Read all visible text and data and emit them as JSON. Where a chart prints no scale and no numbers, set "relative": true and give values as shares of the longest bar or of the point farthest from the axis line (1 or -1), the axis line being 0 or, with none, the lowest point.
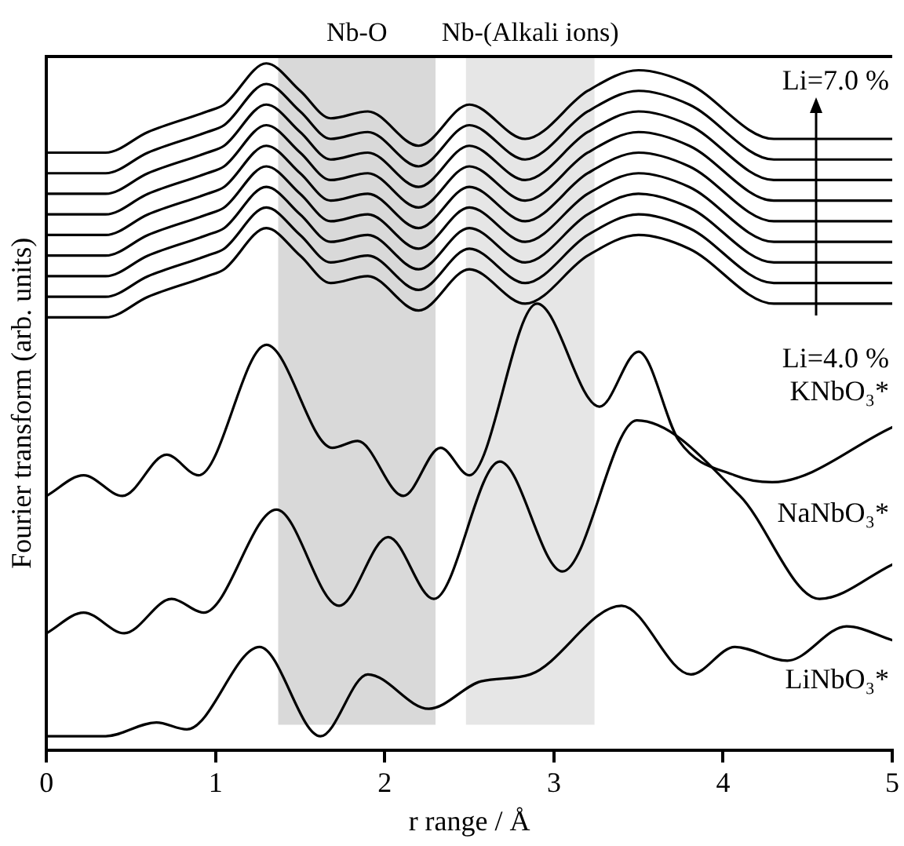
{
  "chart_data": {
    "type": "line",
    "relative": true,
    "xlabel": "r range / Å",
    "ylabel": "Fourier transform (arb. units)",
    "xlim": [
      0,
      5
    ],
    "xticks": [
      0,
      1,
      2,
      3,
      4,
      5
    ],
    "grid": false,
    "legend": false,
    "marker": "none",
    "line_style": "solid",
    "tick_labels": "x",
    "bands": [
      {
        "axis": "x",
        "from": 1.37,
        "to": 2.3,
        "label": "Nb-O",
        "color": "#d9d9d9"
      },
      {
        "axis": "x",
        "from": 2.48,
        "to": 3.24,
        "label": "Nb-(Alkali ions)",
        "color": "#e6e6e6"
      }
    ],
    "series": [
      {
        "name": "Li=7.0 %",
        "color": "#000000",
        "x": [
          0,
          0.35,
          0.6,
          0.95,
          1.05,
          1.3,
          1.5,
          1.68,
          1.9,
          2.2,
          2.5,
          2.83,
          3.2,
          3.5,
          3.8,
          4.3,
          4.6,
          5.0
        ],
        "values": [
          0.87,
          0.87,
          0.9,
          0.93,
          0.94,
          1.0,
          0.96,
          0.92,
          0.93,
          0.88,
          0.94,
          0.89,
          0.96,
          0.99,
          0.97,
          0.89,
          0.89,
          0.89
        ]
      },
      {
        "color": "#000000",
        "x": [
          0,
          0.35,
          0.6,
          0.95,
          1.05,
          1.3,
          1.5,
          1.68,
          1.9,
          2.2,
          2.5,
          2.83,
          3.2,
          3.5,
          3.8,
          4.3,
          4.6,
          5.0
        ],
        "values": [
          0.84,
          0.84,
          0.87,
          0.9,
          0.91,
          0.97,
          0.93,
          0.89,
          0.9,
          0.85,
          0.91,
          0.86,
          0.93,
          0.96,
          0.94,
          0.86,
          0.86,
          0.86
        ]
      },
      {
        "color": "#000000",
        "x": [
          0,
          0.35,
          0.6,
          0.95,
          1.05,
          1.3,
          1.5,
          1.68,
          1.9,
          2.2,
          2.5,
          2.83,
          3.2,
          3.5,
          3.8,
          4.3,
          4.6,
          5.0
        ],
        "values": [
          0.81,
          0.81,
          0.84,
          0.87,
          0.88,
          0.94,
          0.9,
          0.86,
          0.87,
          0.82,
          0.88,
          0.83,
          0.9,
          0.93,
          0.91,
          0.83,
          0.83,
          0.83
        ]
      },
      {
        "color": "#000000",
        "x": [
          0,
          0.35,
          0.6,
          0.95,
          1.05,
          1.3,
          1.5,
          1.68,
          1.9,
          2.2,
          2.5,
          2.83,
          3.2,
          3.5,
          3.8,
          4.3,
          4.6,
          5.0
        ],
        "values": [
          0.78,
          0.78,
          0.81,
          0.84,
          0.85,
          0.91,
          0.87,
          0.83,
          0.84,
          0.79,
          0.85,
          0.8,
          0.87,
          0.9,
          0.88,
          0.8,
          0.8,
          0.8
        ]
      },
      {
        "color": "#000000",
        "x": [
          0,
          0.35,
          0.6,
          0.95,
          1.05,
          1.3,
          1.5,
          1.68,
          1.9,
          2.2,
          2.5,
          2.83,
          3.2,
          3.5,
          3.8,
          4.3,
          4.6,
          5.0
        ],
        "values": [
          0.75,
          0.75,
          0.78,
          0.81,
          0.82,
          0.88,
          0.84,
          0.8,
          0.81,
          0.76,
          0.82,
          0.77,
          0.84,
          0.87,
          0.85,
          0.77,
          0.77,
          0.77
        ]
      },
      {
        "color": "#000000",
        "x": [
          0,
          0.35,
          0.6,
          0.95,
          1.05,
          1.3,
          1.5,
          1.68,
          1.9,
          2.2,
          2.5,
          2.83,
          3.2,
          3.5,
          3.8,
          4.3,
          4.6,
          5.0
        ],
        "values": [
          0.72,
          0.72,
          0.75,
          0.78,
          0.79,
          0.85,
          0.81,
          0.77,
          0.78,
          0.73,
          0.79,
          0.74,
          0.81,
          0.84,
          0.82,
          0.74,
          0.74,
          0.74
        ]
      },
      {
        "color": "#000000",
        "x": [
          0,
          0.35,
          0.6,
          0.95,
          1.05,
          1.3,
          1.5,
          1.68,
          1.9,
          2.2,
          2.5,
          2.83,
          3.2,
          3.5,
          3.8,
          4.3,
          4.6,
          5.0
        ],
        "values": [
          0.69,
          0.69,
          0.72,
          0.75,
          0.76,
          0.82,
          0.78,
          0.74,
          0.75,
          0.7,
          0.76,
          0.71,
          0.78,
          0.81,
          0.79,
          0.71,
          0.71,
          0.71
        ]
      },
      {
        "color": "#000000",
        "x": [
          0,
          0.35,
          0.6,
          0.95,
          1.05,
          1.3,
          1.5,
          1.68,
          1.9,
          2.2,
          2.5,
          2.83,
          3.2,
          3.5,
          3.8,
          4.3,
          4.6,
          5.0
        ],
        "values": [
          0.66,
          0.66,
          0.69,
          0.72,
          0.73,
          0.79,
          0.75,
          0.71,
          0.72,
          0.67,
          0.73,
          0.68,
          0.75,
          0.78,
          0.76,
          0.68,
          0.68,
          0.68
        ]
      },
      {
        "name": "Li=4.0 %",
        "color": "#000000",
        "x": [
          0,
          0.35,
          0.6,
          0.95,
          1.05,
          1.3,
          1.5,
          1.68,
          1.9,
          2.2,
          2.5,
          2.83,
          3.2,
          3.5,
          3.8,
          4.3,
          4.6,
          5.0
        ],
        "values": [
          0.63,
          0.63,
          0.66,
          0.69,
          0.7,
          0.76,
          0.72,
          0.68,
          0.69,
          0.64,
          0.7,
          0.65,
          0.72,
          0.75,
          0.73,
          0.65,
          0.65,
          0.65
        ]
      },
      {
        "name": "KNbO₃*",
        "color": "#000000",
        "x": [
          0,
          0.22,
          0.45,
          0.71,
          0.9,
          1.3,
          1.69,
          1.84,
          2.11,
          2.33,
          2.5,
          2.9,
          3.27,
          3.5,
          3.74,
          4.07,
          4.29,
          5.0
        ],
        "values": [
          0.37,
          0.4,
          0.37,
          0.43,
          0.4,
          0.59,
          0.44,
          0.45,
          0.37,
          0.44,
          0.4,
          0.65,
          0.5,
          0.58,
          0.45,
          0.4,
          0.39,
          0.47
        ]
      },
      {
        "name": "NaNbO₃*",
        "color": "#000000",
        "x": [
          0,
          0.22,
          0.46,
          0.74,
          0.93,
          1.36,
          1.73,
          2.02,
          2.29,
          2.68,
          3.05,
          3.49,
          4.1,
          4.57,
          5.0
        ],
        "values": [
          0.17,
          0.2,
          0.17,
          0.22,
          0.2,
          0.35,
          0.21,
          0.31,
          0.22,
          0.42,
          0.26,
          0.48,
          0.37,
          0.22,
          0.27
        ]
      },
      {
        "name": "LiNbO₃*",
        "color": "#000000",
        "x": [
          0,
          0.35,
          0.65,
          0.83,
          1.26,
          1.62,
          1.9,
          2.26,
          2.57,
          2.86,
          3.4,
          3.81,
          4.07,
          4.38,
          4.73,
          5.0
        ],
        "values": [
          0.02,
          0.02,
          0.04,
          0.03,
          0.15,
          0.02,
          0.11,
          0.06,
          0.1,
          0.11,
          0.21,
          0.11,
          0.15,
          0.13,
          0.18,
          0.16
        ]
      }
    ]
  }
}
